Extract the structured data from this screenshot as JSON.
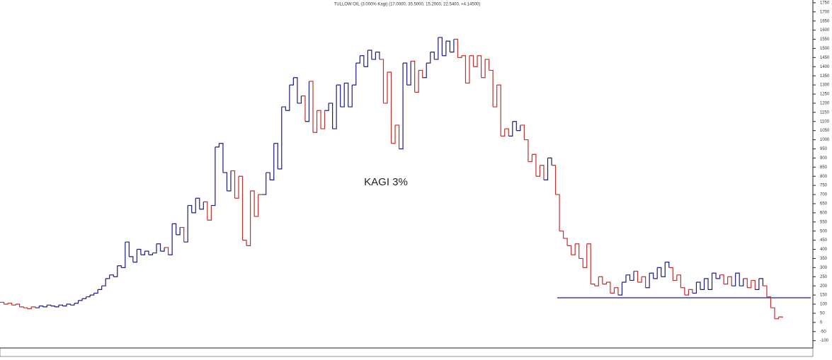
{
  "chart_data": {
    "type": "kagi",
    "title": "TULLOW OIL (3.000% Kagi) (17.0000, 35.5000, 15.2000, 22.5400, +4.14500)",
    "annotation": "KAGI 3%",
    "yang_color": "#1c1c84",
    "yin_color": "#c42e2a",
    "hline": {
      "value": 135,
      "color": "#1c1c84"
    },
    "values": [
      110,
      100,
      105,
      95,
      100,
      85,
      80,
      75,
      85,
      80,
      90,
      85,
      95,
      90,
      85,
      95,
      90,
      100,
      95,
      105,
      120,
      130,
      140,
      150,
      160,
      180,
      200,
      240,
      260,
      250,
      310,
      300,
      440,
      360,
      330,
      400,
      370,
      390,
      370,
      380,
      430,
      390,
      410,
      370,
      540,
      480,
      520,
      440,
      640,
      600,
      680,
      620,
      660,
      560,
      640,
      960,
      980,
      820,
      720,
      830,
      680,
      800,
      450,
      420,
      720,
      580,
      700,
      700,
      820,
      780,
      980,
      840,
      1180,
      1160,
      1300,
      1340,
      1200,
      1240,
      1100,
      1320,
      1040,
      1160,
      1060,
      1160,
      1200,
      1060,
      1300,
      1180,
      1310,
      1180,
      1300,
      1420,
      1460,
      1400,
      1490,
      1440,
      1480,
      1440,
      1200,
      1370,
      980,
      1080,
      950,
      1420,
      1300,
      1430,
      1260,
      1380,
      1340,
      1420,
      1480,
      1440,
      1560,
      1460,
      1540,
      1480,
      1550,
      1450,
      1460,
      1310,
      1460,
      1400,
      1460,
      1340,
      1440,
      1380,
      1180,
      1300,
      1020,
      1060,
      1020,
      1100,
      1050,
      1080,
      1000,
      880,
      920,
      800,
      860,
      780,
      900,
      860,
      700,
      500,
      460,
      420,
      370,
      430,
      350,
      300,
      430,
      210,
      200,
      250,
      210,
      220,
      160,
      190,
      150,
      220,
      260,
      230,
      280,
      220,
      250,
      190,
      270,
      240,
      300,
      250,
      330,
      300,
      230,
      260,
      190,
      150,
      180,
      160,
      220,
      180,
      240,
      180,
      270,
      240,
      260,
      210,
      250,
      200,
      270,
      200,
      240,
      190,
      230,
      180,
      240,
      200,
      140,
      80,
      20,
      30,
      25
    ],
    "ylim": [
      -140,
      1765
    ],
    "yticks": [
      -100,
      -50,
      0,
      50,
      100,
      150,
      200,
      250,
      300,
      350,
      400,
      450,
      500,
      550,
      600,
      650,
      700,
      750,
      800,
      850,
      900,
      950,
      1000,
      1050,
      1100,
      1150,
      1200,
      1250,
      1300,
      1350,
      1400,
      1450,
      1500,
      1550,
      1600,
      1650,
      1700,
      1750
    ]
  }
}
